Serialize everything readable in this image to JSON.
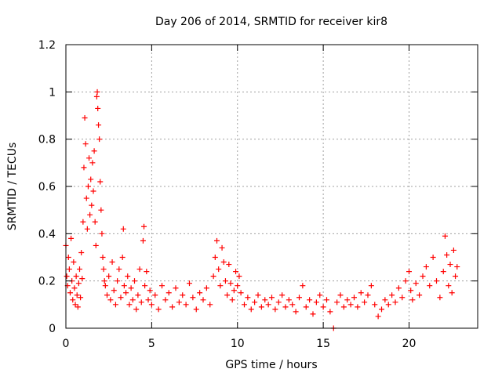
{
  "chart_data": {
    "type": "scatter",
    "title": "Day 206 of 2014, SRMTID for receiver kir8",
    "xlabel": "GPS time / hours",
    "ylabel": "SRMTID / TECUs",
    "xlim": [
      0,
      24
    ],
    "ylim": [
      0,
      1.2
    ],
    "xticks": [
      0,
      5,
      10,
      15,
      20
    ],
    "yticks": [
      0,
      0.2,
      0.4,
      0.6,
      0.8,
      1,
      1.2
    ],
    "xtick_labels": [
      "0",
      "5",
      "10",
      "15",
      "20"
    ],
    "ytick_labels": [
      "0",
      "0.2",
      "0.4",
      "0.6",
      "0.8",
      "1",
      "1.2"
    ],
    "grid": true,
    "marker": "+",
    "series": [
      {
        "name": "SRMTID",
        "color": "#ff0000",
        "points": [
          [
            0.0,
            0.35
          ],
          [
            0.05,
            0.22
          ],
          [
            0.1,
            0.18
          ],
          [
            0.15,
            0.3
          ],
          [
            0.2,
            0.25
          ],
          [
            0.25,
            0.15
          ],
          [
            0.3,
            0.38
          ],
          [
            0.35,
            0.2
          ],
          [
            0.4,
            0.12
          ],
          [
            0.45,
            0.28
          ],
          [
            0.5,
            0.17
          ],
          [
            0.55,
            0.1
          ],
          [
            0.6,
            0.22
          ],
          [
            0.65,
            0.14
          ],
          [
            0.7,
            0.09
          ],
          [
            0.75,
            0.19
          ],
          [
            0.8,
            0.25
          ],
          [
            0.85,
            0.13
          ],
          [
            0.9,
            0.32
          ],
          [
            0.95,
            0.21
          ],
          [
            1.0,
            0.45
          ],
          [
            1.05,
            0.68
          ],
          [
            1.1,
            0.89
          ],
          [
            1.15,
            0.78
          ],
          [
            1.2,
            0.55
          ],
          [
            1.25,
            0.42
          ],
          [
            1.3,
            0.6
          ],
          [
            1.35,
            0.72
          ],
          [
            1.4,
            0.48
          ],
          [
            1.45,
            0.63
          ],
          [
            1.5,
            0.52
          ],
          [
            1.55,
            0.7
          ],
          [
            1.6,
            0.58
          ],
          [
            1.65,
            0.75
          ],
          [
            1.7,
            0.45
          ],
          [
            1.75,
            0.35
          ],
          [
            1.8,
            0.98
          ],
          [
            1.83,
            1.0
          ],
          [
            1.86,
            0.93
          ],
          [
            1.9,
            0.86
          ],
          [
            1.95,
            0.8
          ],
          [
            2.0,
            0.62
          ],
          [
            2.05,
            0.5
          ],
          [
            2.1,
            0.4
          ],
          [
            2.15,
            0.3
          ],
          [
            2.2,
            0.25
          ],
          [
            2.25,
            0.2
          ],
          [
            2.3,
            0.18
          ],
          [
            2.4,
            0.14
          ],
          [
            2.5,
            0.22
          ],
          [
            2.6,
            0.12
          ],
          [
            2.7,
            0.28
          ],
          [
            2.8,
            0.16
          ],
          [
            2.9,
            0.1
          ],
          [
            3.0,
            0.2
          ],
          [
            3.1,
            0.25
          ],
          [
            3.2,
            0.13
          ],
          [
            3.3,
            0.3
          ],
          [
            3.35,
            0.42
          ],
          [
            3.4,
            0.18
          ],
          [
            3.5,
            0.15
          ],
          [
            3.6,
            0.22
          ],
          [
            3.7,
            0.1
          ],
          [
            3.8,
            0.17
          ],
          [
            3.9,
            0.12
          ],
          [
            4.0,
            0.2
          ],
          [
            4.1,
            0.08
          ],
          [
            4.2,
            0.14
          ],
          [
            4.3,
            0.25
          ],
          [
            4.4,
            0.11
          ],
          [
            4.5,
            0.37
          ],
          [
            4.55,
            0.43
          ],
          [
            4.6,
            0.18
          ],
          [
            4.7,
            0.24
          ],
          [
            4.8,
            0.12
          ],
          [
            4.9,
            0.16
          ],
          [
            5.0,
            0.1
          ],
          [
            5.2,
            0.14
          ],
          [
            5.4,
            0.08
          ],
          [
            5.6,
            0.18
          ],
          [
            5.8,
            0.12
          ],
          [
            6.0,
            0.15
          ],
          [
            6.2,
            0.09
          ],
          [
            6.4,
            0.17
          ],
          [
            6.6,
            0.11
          ],
          [
            6.8,
            0.14
          ],
          [
            7.0,
            0.1
          ],
          [
            7.2,
            0.19
          ],
          [
            7.4,
            0.13
          ],
          [
            7.6,
            0.08
          ],
          [
            7.8,
            0.15
          ],
          [
            8.0,
            0.12
          ],
          [
            8.2,
            0.17
          ],
          [
            8.4,
            0.1
          ],
          [
            8.6,
            0.22
          ],
          [
            8.7,
            0.3
          ],
          [
            8.8,
            0.37
          ],
          [
            8.9,
            0.25
          ],
          [
            9.0,
            0.18
          ],
          [
            9.1,
            0.34
          ],
          [
            9.2,
            0.28
          ],
          [
            9.3,
            0.2
          ],
          [
            9.4,
            0.14
          ],
          [
            9.5,
            0.27
          ],
          [
            9.6,
            0.19
          ],
          [
            9.7,
            0.12
          ],
          [
            9.8,
            0.16
          ],
          [
            9.9,
            0.24
          ],
          [
            10.0,
            0.18
          ],
          [
            10.1,
            0.22
          ],
          [
            10.2,
            0.15
          ],
          [
            10.4,
            0.1
          ],
          [
            10.6,
            0.13
          ],
          [
            10.8,
            0.08
          ],
          [
            11.0,
            0.11
          ],
          [
            11.2,
            0.14
          ],
          [
            11.4,
            0.09
          ],
          [
            11.6,
            0.12
          ],
          [
            11.8,
            0.1
          ],
          [
            12.0,
            0.13
          ],
          [
            12.2,
            0.08
          ],
          [
            12.4,
            0.11
          ],
          [
            12.6,
            0.14
          ],
          [
            12.8,
            0.09
          ],
          [
            13.0,
            0.12
          ],
          [
            13.2,
            0.1
          ],
          [
            13.4,
            0.07
          ],
          [
            13.6,
            0.13
          ],
          [
            13.8,
            0.18
          ],
          [
            14.0,
            0.09
          ],
          [
            14.2,
            0.12
          ],
          [
            14.4,
            0.06
          ],
          [
            14.6,
            0.11
          ],
          [
            14.8,
            0.14
          ],
          [
            15.0,
            0.09
          ],
          [
            15.2,
            0.12
          ],
          [
            15.4,
            0.07
          ],
          [
            15.6,
            0.0
          ],
          [
            15.8,
            0.11
          ],
          [
            16.0,
            0.14
          ],
          [
            16.2,
            0.09
          ],
          [
            16.4,
            0.12
          ],
          [
            16.6,
            0.1
          ],
          [
            16.8,
            0.13
          ],
          [
            17.0,
            0.09
          ],
          [
            17.2,
            0.15
          ],
          [
            17.4,
            0.11
          ],
          [
            17.6,
            0.14
          ],
          [
            17.8,
            0.18
          ],
          [
            18.0,
            0.1
          ],
          [
            18.2,
            0.05
          ],
          [
            18.4,
            0.08
          ],
          [
            18.6,
            0.12
          ],
          [
            18.8,
            0.1
          ],
          [
            19.0,
            0.14
          ],
          [
            19.2,
            0.11
          ],
          [
            19.4,
            0.17
          ],
          [
            19.6,
            0.13
          ],
          [
            19.8,
            0.2
          ],
          [
            20.0,
            0.24
          ],
          [
            20.1,
            0.16
          ],
          [
            20.2,
            0.12
          ],
          [
            20.4,
            0.19
          ],
          [
            20.6,
            0.14
          ],
          [
            20.8,
            0.22
          ],
          [
            21.0,
            0.26
          ],
          [
            21.2,
            0.18
          ],
          [
            21.4,
            0.3
          ],
          [
            21.6,
            0.2
          ],
          [
            21.8,
            0.13
          ],
          [
            22.0,
            0.24
          ],
          [
            22.1,
            0.39
          ],
          [
            22.2,
            0.31
          ],
          [
            22.3,
            0.18
          ],
          [
            22.4,
            0.27
          ],
          [
            22.5,
            0.15
          ],
          [
            22.6,
            0.33
          ],
          [
            22.7,
            0.22
          ],
          [
            22.8,
            0.26
          ]
        ]
      }
    ]
  }
}
